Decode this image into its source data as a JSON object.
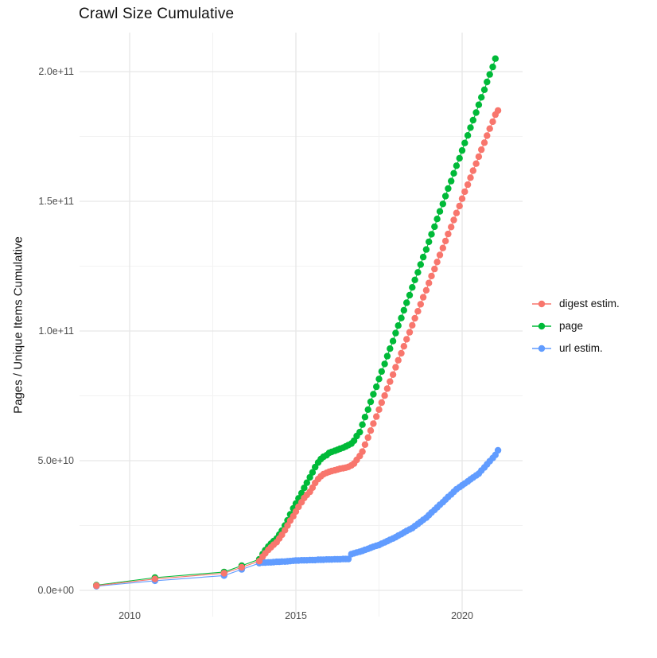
{
  "title": "Crawl Size Cumulative",
  "y_axis": {
    "label": "Pages / Unique Items Cumulative",
    "ticks": [
      {
        "value_e9": 0,
        "label": "0.0e+00"
      },
      {
        "value_e9": 50,
        "label": "5.0e+10"
      },
      {
        "value_e9": 100,
        "label": "1.0e+11"
      },
      {
        "value_e9": 150,
        "label": "1.5e+11"
      },
      {
        "value_e9": 200,
        "label": "2.0e+11"
      }
    ],
    "minor_ticks_e9": [
      25,
      75,
      125,
      175
    ]
  },
  "x_axis": {
    "ticks": [
      {
        "year": 2010,
        "label": "2010"
      },
      {
        "year": 2015,
        "label": "2015"
      },
      {
        "year": 2020,
        "label": "2020"
      }
    ],
    "minor_ticks_year": [
      2012.5,
      2017.5
    ]
  },
  "legend": {
    "items": [
      {
        "label": "digest estim.",
        "color": "#F8766D",
        "series": "digest"
      },
      {
        "label": "page",
        "color": "#00BA38",
        "series": "page"
      },
      {
        "label": "url estim.",
        "color": "#619CFF",
        "series": "url"
      }
    ]
  },
  "colors": {
    "digest": "#F8766D",
    "page": "#00BA38",
    "url": "#619CFF",
    "grid_major": "#E6E6E6",
    "grid_minor": "#F2F2F2"
  },
  "chart_data": {
    "type": "line",
    "marker": "point",
    "title": "Crawl Size Cumulative",
    "xlabel": "",
    "ylabel": "Pages / Unique Items Cumulative",
    "x_unit": "year",
    "value_unit": "pages (billions, 1e9)",
    "xlim": [
      2008.5,
      2021.6
    ],
    "ylim_e9": [
      -10,
      215
    ],
    "grid": true,
    "legend_position": "right",
    "series": [
      {
        "name": "url estim.",
        "color": "#619CFF",
        "points": [
          [
            2009.0,
            1.6
          ],
          [
            2010.76,
            3.7
          ],
          [
            2012.84,
            5.7
          ],
          [
            2013.37,
            8.1
          ],
          [
            2013.9,
            10.5
          ],
          [
            2014.0,
            10.7
          ],
          [
            2014.08,
            10.7
          ],
          [
            2014.17,
            10.8
          ],
          [
            2014.25,
            10.8
          ],
          [
            2014.33,
            10.9
          ],
          [
            2014.42,
            11.0
          ],
          [
            2014.5,
            11.0
          ],
          [
            2014.58,
            11.1
          ],
          [
            2014.67,
            11.1
          ],
          [
            2014.75,
            11.2
          ],
          [
            2014.83,
            11.3
          ],
          [
            2014.92,
            11.4
          ],
          [
            2015.0,
            11.5
          ],
          [
            2015.08,
            11.5
          ],
          [
            2015.17,
            11.6
          ],
          [
            2015.25,
            11.6
          ],
          [
            2015.33,
            11.6
          ],
          [
            2015.42,
            11.7
          ],
          [
            2015.5,
            11.7
          ],
          [
            2015.58,
            11.7
          ],
          [
            2015.67,
            11.8
          ],
          [
            2015.75,
            11.8
          ],
          [
            2015.83,
            11.8
          ],
          [
            2015.92,
            11.9
          ],
          [
            2016.0,
            11.9
          ],
          [
            2016.08,
            11.9
          ],
          [
            2016.17,
            12.0
          ],
          [
            2016.25,
            12.0
          ],
          [
            2016.33,
            12.0
          ],
          [
            2016.42,
            12.1
          ],
          [
            2016.5,
            12.1
          ],
          [
            2016.58,
            12.1
          ],
          [
            2016.67,
            14.0
          ],
          [
            2016.75,
            14.3
          ],
          [
            2016.83,
            14.6
          ],
          [
            2016.92,
            14.9
          ],
          [
            2017.0,
            15.2
          ],
          [
            2017.08,
            15.6
          ],
          [
            2017.17,
            16.0
          ],
          [
            2017.25,
            16.4
          ],
          [
            2017.33,
            16.8
          ],
          [
            2017.42,
            17.2
          ],
          [
            2017.5,
            17.5
          ],
          [
            2017.58,
            18.0
          ],
          [
            2017.67,
            18.5
          ],
          [
            2017.75,
            19.0
          ],
          [
            2017.83,
            19.5
          ],
          [
            2017.92,
            20.0
          ],
          [
            2018.0,
            20.5
          ],
          [
            2018.08,
            21.1
          ],
          [
            2018.17,
            21.7
          ],
          [
            2018.25,
            22.3
          ],
          [
            2018.33,
            22.9
          ],
          [
            2018.42,
            23.5
          ],
          [
            2018.5,
            24.0
          ],
          [
            2018.58,
            24.8
          ],
          [
            2018.67,
            25.6
          ],
          [
            2018.75,
            26.4
          ],
          [
            2018.83,
            27.2
          ],
          [
            2018.92,
            28.0
          ],
          [
            2019.0,
            29.0
          ],
          [
            2019.08,
            30.0
          ],
          [
            2019.17,
            31.0
          ],
          [
            2019.25,
            32.0
          ],
          [
            2019.33,
            33.0
          ],
          [
            2019.42,
            34.0
          ],
          [
            2019.5,
            35.0
          ],
          [
            2019.58,
            36.0
          ],
          [
            2019.67,
            37.0
          ],
          [
            2019.75,
            38.0
          ],
          [
            2019.83,
            39.0
          ],
          [
            2019.92,
            39.8
          ],
          [
            2020.0,
            40.5
          ],
          [
            2020.08,
            41.2
          ],
          [
            2020.17,
            42.0
          ],
          [
            2020.25,
            42.8
          ],
          [
            2020.33,
            43.5
          ],
          [
            2020.42,
            44.3
          ],
          [
            2020.5,
            45.0
          ],
          [
            2020.58,
            46.2
          ],
          [
            2020.67,
            47.4
          ],
          [
            2020.75,
            48.6
          ],
          [
            2020.83,
            49.8
          ],
          [
            2020.92,
            51.0
          ],
          [
            2021.0,
            52.2
          ],
          [
            2021.08,
            54.0
          ]
        ]
      },
      {
        "name": "page",
        "color": "#00BA38",
        "points": [
          [
            2009.0,
            2.0
          ],
          [
            2010.76,
            4.9
          ],
          [
            2012.84,
            7.1
          ],
          [
            2013.37,
            9.5
          ],
          [
            2013.9,
            12.0
          ],
          [
            2014.0,
            14.0
          ],
          [
            2014.08,
            15.5
          ],
          [
            2014.17,
            16.9
          ],
          [
            2014.25,
            18.0
          ],
          [
            2014.33,
            19.0
          ],
          [
            2014.42,
            20.0
          ],
          [
            2014.5,
            21.5
          ],
          [
            2014.58,
            23.0
          ],
          [
            2014.67,
            25.0
          ],
          [
            2014.75,
            27.0
          ],
          [
            2014.83,
            29.3
          ],
          [
            2014.92,
            31.6
          ],
          [
            2015.0,
            33.5
          ],
          [
            2015.08,
            35.5
          ],
          [
            2015.17,
            37.5
          ],
          [
            2015.25,
            39.5
          ],
          [
            2015.33,
            41.5
          ],
          [
            2015.42,
            43.6
          ],
          [
            2015.5,
            45.5
          ],
          [
            2015.58,
            47.5
          ],
          [
            2015.67,
            49.3
          ],
          [
            2015.75,
            50.6
          ],
          [
            2015.83,
            51.5
          ],
          [
            2015.92,
            52.1
          ],
          [
            2016.0,
            53.0
          ],
          [
            2016.08,
            53.4
          ],
          [
            2016.17,
            53.8
          ],
          [
            2016.25,
            54.2
          ],
          [
            2016.33,
            54.6
          ],
          [
            2016.42,
            55.0
          ],
          [
            2016.5,
            55.5
          ],
          [
            2016.58,
            56.0
          ],
          [
            2016.67,
            56.6
          ],
          [
            2016.75,
            57.7
          ],
          [
            2016.83,
            59.5
          ],
          [
            2016.92,
            61.0
          ],
          [
            2017.0,
            63.9
          ],
          [
            2017.08,
            66.8
          ],
          [
            2017.17,
            69.7
          ],
          [
            2017.25,
            72.7
          ],
          [
            2017.33,
            75.6
          ],
          [
            2017.42,
            78.5
          ],
          [
            2017.5,
            81.5
          ],
          [
            2017.58,
            84.4
          ],
          [
            2017.67,
            87.3
          ],
          [
            2017.75,
            90.3
          ],
          [
            2017.83,
            93.2
          ],
          [
            2017.92,
            96.1
          ],
          [
            2018.0,
            99.2
          ],
          [
            2018.08,
            102.1
          ],
          [
            2018.17,
            105.0
          ],
          [
            2018.25,
            108.0
          ],
          [
            2018.33,
            110.9
          ],
          [
            2018.42,
            113.8
          ],
          [
            2018.5,
            116.8
          ],
          [
            2018.58,
            119.7
          ],
          [
            2018.67,
            122.6
          ],
          [
            2018.75,
            125.6
          ],
          [
            2018.83,
            128.5
          ],
          [
            2018.92,
            131.4
          ],
          [
            2019.0,
            134.4
          ],
          [
            2019.08,
            137.3
          ],
          [
            2019.17,
            140.2
          ],
          [
            2019.25,
            143.2
          ],
          [
            2019.33,
            146.1
          ],
          [
            2019.42,
            149.0
          ],
          [
            2019.5,
            152.0
          ],
          [
            2019.58,
            154.9
          ],
          [
            2019.67,
            157.8
          ],
          [
            2019.75,
            160.8
          ],
          [
            2019.83,
            163.7
          ],
          [
            2019.92,
            166.6
          ],
          [
            2020.0,
            169.6
          ],
          [
            2020.08,
            172.5
          ],
          [
            2020.17,
            175.4
          ],
          [
            2020.25,
            178.4
          ],
          [
            2020.33,
            181.3
          ],
          [
            2020.42,
            184.2
          ],
          [
            2020.5,
            187.2
          ],
          [
            2020.58,
            190.1
          ],
          [
            2020.67,
            193.0
          ],
          [
            2020.75,
            196.0
          ],
          [
            2020.83,
            198.9
          ],
          [
            2020.92,
            201.8
          ],
          [
            2021.0,
            205.0
          ]
        ]
      },
      {
        "name": "digest estim.",
        "color": "#F8766D",
        "points": [
          [
            2009.0,
            1.8
          ],
          [
            2010.76,
            4.4
          ],
          [
            2012.84,
            6.6
          ],
          [
            2013.37,
            8.9
          ],
          [
            2013.9,
            11.3
          ],
          [
            2014.0,
            13.0
          ],
          [
            2014.08,
            14.3
          ],
          [
            2014.17,
            15.6
          ],
          [
            2014.25,
            16.6
          ],
          [
            2014.33,
            17.6
          ],
          [
            2014.42,
            18.6
          ],
          [
            2014.5,
            20.0
          ],
          [
            2014.58,
            21.4
          ],
          [
            2014.67,
            23.2
          ],
          [
            2014.75,
            25.0
          ],
          [
            2014.83,
            26.9
          ],
          [
            2014.92,
            28.6
          ],
          [
            2015.0,
            30.4
          ],
          [
            2015.08,
            32.2
          ],
          [
            2015.17,
            34.0
          ],
          [
            2015.25,
            35.6
          ],
          [
            2015.33,
            36.8
          ],
          [
            2015.42,
            38.0
          ],
          [
            2015.5,
            39.6
          ],
          [
            2015.58,
            41.4
          ],
          [
            2015.67,
            42.9
          ],
          [
            2015.75,
            44.0
          ],
          [
            2015.83,
            44.8
          ],
          [
            2015.92,
            45.3
          ],
          [
            2016.0,
            45.7
          ],
          [
            2016.08,
            46.0
          ],
          [
            2016.17,
            46.3
          ],
          [
            2016.25,
            46.6
          ],
          [
            2016.33,
            46.9
          ],
          [
            2016.42,
            47.1
          ],
          [
            2016.5,
            47.3
          ],
          [
            2016.58,
            47.6
          ],
          [
            2016.67,
            48.2
          ],
          [
            2016.75,
            48.9
          ],
          [
            2016.83,
            50.3
          ],
          [
            2016.92,
            51.8
          ],
          [
            2017.0,
            53.5
          ],
          [
            2017.08,
            56.2
          ],
          [
            2017.17,
            58.9
          ],
          [
            2017.25,
            61.6
          ],
          [
            2017.33,
            64.3
          ],
          [
            2017.42,
            67.0
          ],
          [
            2017.5,
            69.7
          ],
          [
            2017.58,
            72.4
          ],
          [
            2017.67,
            75.1
          ],
          [
            2017.75,
            77.8
          ],
          [
            2017.83,
            80.5
          ],
          [
            2017.92,
            83.2
          ],
          [
            2018.0,
            86.0
          ],
          [
            2018.08,
            88.7
          ],
          [
            2018.17,
            91.4
          ],
          [
            2018.25,
            94.1
          ],
          [
            2018.33,
            96.8
          ],
          [
            2018.42,
            99.5
          ],
          [
            2018.5,
            102.2
          ],
          [
            2018.58,
            104.9
          ],
          [
            2018.67,
            107.6
          ],
          [
            2018.75,
            110.3
          ],
          [
            2018.83,
            113.0
          ],
          [
            2018.92,
            115.7
          ],
          [
            2019.0,
            118.5
          ],
          [
            2019.08,
            121.2
          ],
          [
            2019.17,
            123.9
          ],
          [
            2019.25,
            126.6
          ],
          [
            2019.33,
            129.3
          ],
          [
            2019.42,
            132.0
          ],
          [
            2019.5,
            134.7
          ],
          [
            2019.58,
            137.4
          ],
          [
            2019.67,
            140.1
          ],
          [
            2019.75,
            142.8
          ],
          [
            2019.83,
            145.5
          ],
          [
            2019.92,
            148.2
          ],
          [
            2020.0,
            151.0
          ],
          [
            2020.08,
            153.7
          ],
          [
            2020.17,
            156.4
          ],
          [
            2020.25,
            159.1
          ],
          [
            2020.33,
            161.8
          ],
          [
            2020.42,
            164.5
          ],
          [
            2020.5,
            167.2
          ],
          [
            2020.58,
            169.9
          ],
          [
            2020.67,
            172.6
          ],
          [
            2020.75,
            175.3
          ],
          [
            2020.83,
            178.0
          ],
          [
            2020.92,
            180.7
          ],
          [
            2021.0,
            183.4
          ],
          [
            2021.08,
            185.0
          ]
        ]
      }
    ]
  }
}
